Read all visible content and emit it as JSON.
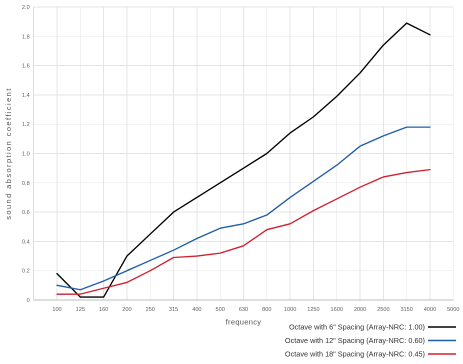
{
  "chart_data": {
    "type": "line",
    "xlabel": "frequency",
    "ylabel": "sound absorption coefficient",
    "categories": [
      "100",
      "125",
      "160",
      "200",
      "250",
      "315",
      "400",
      "500",
      "630",
      "800",
      "1000",
      "1250",
      "1600",
      "2000",
      "2500",
      "3150",
      "4000",
      "5000"
    ],
    "ylim": [
      0,
      2.0
    ],
    "y_ticks": [
      "0",
      "0.2",
      "0.4",
      "0.6",
      "0.8",
      "1.0",
      "1.2",
      "1.4",
      "1.6",
      "1.8",
      "2.0"
    ],
    "grid": true,
    "legend_position": "bottom-right",
    "series": [
      {
        "name": "Octave with 6\" Spacing (Array-NRC: 1.00)",
        "color": "#000000",
        "values": [
          0.18,
          0.02,
          0.02,
          0.3,
          0.45,
          0.6,
          0.7,
          0.8,
          0.9,
          1.0,
          1.14,
          1.25,
          1.39,
          1.55,
          1.74,
          1.89,
          1.81,
          null
        ]
      },
      {
        "name": "Octave with 12\" Spacing (Array-NRC: 0.60)",
        "color": "#1f5fa6",
        "values": [
          0.1,
          0.07,
          0.13,
          0.2,
          0.27,
          0.34,
          0.42,
          0.49,
          0.52,
          0.58,
          0.7,
          0.81,
          0.92,
          1.05,
          1.12,
          1.18,
          1.18,
          null
        ]
      },
      {
        "name": "Octave with 18\" Spacing (Array-NRC: 0.45)",
        "color": "#d0202f",
        "values": [
          0.04,
          0.04,
          0.08,
          0.12,
          0.2,
          0.29,
          0.3,
          0.32,
          0.37,
          0.48,
          0.52,
          0.61,
          0.69,
          0.77,
          0.84,
          0.87,
          0.89,
          null
        ]
      }
    ]
  }
}
